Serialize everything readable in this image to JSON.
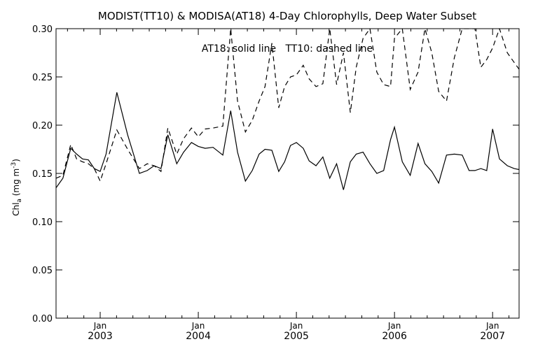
{
  "chart_data": {
    "type": "line",
    "title": "MODIST(TT10) & MODISA(AT18) 4-Day Chlorophylls, Deep Water Subset",
    "annotation": "AT18: solid line   TT10: dashed line",
    "ylabel": {
      "base": "Chl",
      "subscript": "a",
      "units_pre": " (mg m",
      "superscript": "-3",
      "units_post": ")"
    },
    "xlim": [
      2002.55,
      2007.27
    ],
    "ylim": [
      0.0,
      0.3
    ],
    "yticks": [
      "0.00",
      "0.05",
      "0.10",
      "0.15",
      "0.20",
      "0.25",
      "0.30"
    ],
    "xticks": [
      {
        "x": 2003.0,
        "month": "Jan",
        "year": "2003"
      },
      {
        "x": 2004.0,
        "month": "Jan",
        "year": "2004"
      },
      {
        "x": 2005.0,
        "month": "Jan",
        "year": "2005"
      },
      {
        "x": 2006.0,
        "month": "Jan",
        "year": "2006"
      },
      {
        "x": 2007.0,
        "month": "Jan",
        "year": "2007"
      }
    ],
    "grid": false,
    "series": [
      {
        "name": "AT18",
        "style": "solid",
        "x": [
          2002.55,
          2002.62,
          2002.7,
          2002.76,
          2002.82,
          2002.88,
          2002.94,
          2003.0,
          2003.06,
          2003.17,
          2003.28,
          2003.4,
          2003.48,
          2003.55,
          2003.62,
          2003.69,
          2003.78,
          2003.85,
          2003.93,
          2004.0,
          2004.07,
          2004.15,
          2004.25,
          2004.33,
          2004.4,
          2004.48,
          2004.55,
          2004.62,
          2004.68,
          2004.75,
          2004.82,
          2004.88,
          2004.94,
          2005.0,
          2005.07,
          2005.13,
          2005.2,
          2005.27,
          2005.34,
          2005.41,
          2005.48,
          2005.55,
          2005.61,
          2005.68,
          2005.75,
          2005.82,
          2005.89,
          2005.96,
          2006.0,
          2006.08,
          2006.16,
          2006.24,
          2006.31,
          2006.38,
          2006.45,
          2006.53,
          2006.61,
          2006.69,
          2006.76,
          2006.82,
          2006.88,
          2006.94,
          2007.0,
          2007.07,
          2007.15,
          2007.22,
          2007.27
        ],
        "values": [
          0.135,
          0.145,
          0.176,
          0.17,
          0.165,
          0.164,
          0.155,
          0.152,
          0.17,
          0.234,
          0.19,
          0.15,
          0.153,
          0.158,
          0.155,
          0.19,
          0.16,
          0.172,
          0.182,
          0.178,
          0.176,
          0.177,
          0.169,
          0.215,
          0.172,
          0.142,
          0.153,
          0.17,
          0.175,
          0.174,
          0.152,
          0.162,
          0.179,
          0.182,
          0.176,
          0.163,
          0.158,
          0.167,
          0.145,
          0.16,
          0.133,
          0.162,
          0.17,
          0.172,
          0.16,
          0.15,
          0.153,
          0.185,
          0.198,
          0.162,
          0.148,
          0.181,
          0.16,
          0.152,
          0.14,
          0.169,
          0.17,
          0.169,
          0.153,
          0.153,
          0.155,
          0.153,
          0.196,
          0.165,
          0.158,
          0.155,
          0.154
        ]
      },
      {
        "name": "TT10",
        "style": "dashed",
        "x": [
          2002.55,
          2002.62,
          2002.7,
          2002.76,
          2002.82,
          2002.88,
          2002.94,
          2003.0,
          2003.06,
          2003.17,
          2003.28,
          2003.4,
          2003.48,
          2003.55,
          2003.62,
          2003.69,
          2003.78,
          2003.85,
          2003.93,
          2004.0,
          2004.07,
          2004.15,
          2004.25,
          2004.33,
          2004.4,
          2004.48,
          2004.55,
          2004.62,
          2004.68,
          2004.75,
          2004.82,
          2004.88,
          2004.94,
          2005.0,
          2005.07,
          2005.13,
          2005.2,
          2005.27,
          2005.34,
          2005.41,
          2005.48,
          2005.55,
          2005.61,
          2005.68,
          2005.75,
          2005.82,
          2005.89,
          2005.96,
          2006.0,
          2006.08,
          2006.16,
          2006.24,
          2006.31,
          2006.38,
          2006.45,
          2006.53,
          2006.61,
          2006.69,
          2006.76,
          2006.82,
          2006.88,
          2006.94,
          2007.0,
          2007.07,
          2007.15,
          2007.22,
          2007.27
        ],
        "values": [
          0.145,
          0.148,
          0.18,
          0.165,
          0.162,
          0.16,
          0.155,
          0.142,
          0.16,
          0.195,
          0.175,
          0.155,
          0.16,
          0.158,
          0.152,
          0.197,
          0.17,
          0.186,
          0.197,
          0.188,
          0.196,
          0.197,
          0.199,
          0.3,
          0.225,
          0.193,
          0.205,
          0.225,
          0.24,
          0.285,
          0.218,
          0.24,
          0.25,
          0.252,
          0.262,
          0.248,
          0.24,
          0.243,
          0.3,
          0.242,
          0.275,
          0.213,
          0.26,
          0.29,
          0.3,
          0.255,
          0.242,
          0.24,
          0.29,
          0.3,
          0.237,
          0.255,
          0.3,
          0.275,
          0.235,
          0.225,
          0.27,
          0.3,
          0.3,
          0.3,
          0.26,
          0.268,
          0.28,
          0.3,
          0.275,
          0.265,
          0.258
        ]
      }
    ]
  }
}
